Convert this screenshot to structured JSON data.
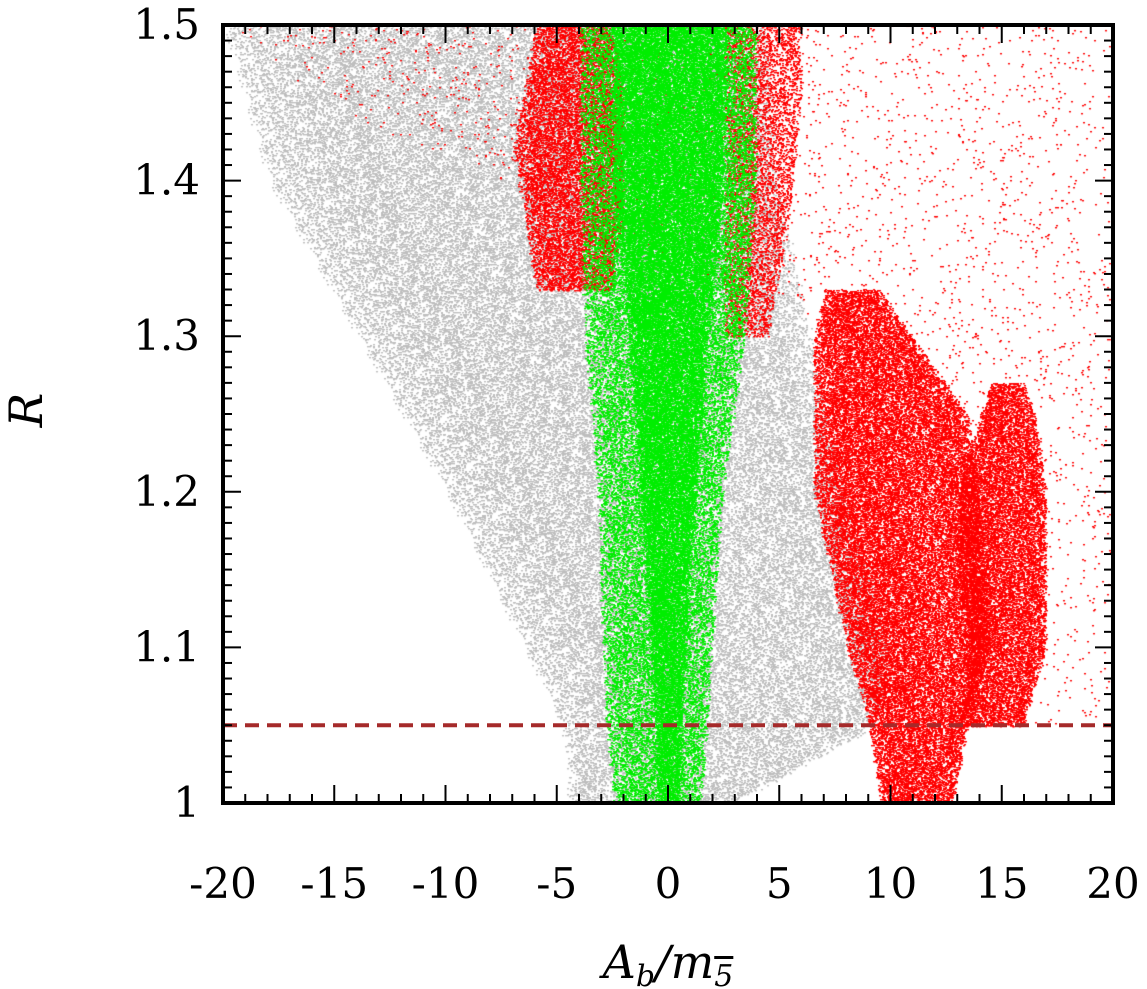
{
  "chart_data": {
    "type": "scatter",
    "title": "",
    "xlabel": "A_b/m_5bar",
    "ylabel": "R",
    "xlim": [
      -20,
      20
    ],
    "ylim": [
      1.0,
      1.5
    ],
    "grid": false,
    "x_ticks": [
      -20,
      -15,
      -10,
      -5,
      0,
      5,
      10,
      15,
      20
    ],
    "x_tick_labels": [
      "-20",
      "-15",
      "-10",
      "-5",
      "0",
      "5",
      "10",
      "15",
      "20"
    ],
    "y_ticks": [
      1.0,
      1.1,
      1.2,
      1.3,
      1.4,
      1.5
    ],
    "y_tick_labels": [
      "1",
      "1.1",
      "1.2",
      "1.3",
      "1.4",
      "1.5"
    ],
    "reference_lines": [
      {
        "orientation": "horizontal",
        "y": 1.05,
        "style": "dashed",
        "color": "#a52a2a"
      }
    ],
    "series": [
      {
        "color": "#bebebe",
        "regions": [
          {
            "y": [
              1.0,
              1.05,
              1.1,
              1.2,
              1.3,
              1.4,
              1.5
            ],
            "xmin": [
              -4.5,
              -4.8,
              -6.5,
              -10.0,
              -14.0,
              -18.0,
              -20.0
            ],
            "xmax": [
              3.0,
              9.5,
              10.0,
              8.0,
              6.5,
              5.0,
              4.5
            ],
            "density": 0.45
          }
        ]
      },
      {
        "color": "#ff0000",
        "regions": [
          {
            "y": [
              1.0,
              1.05,
              1.1,
              1.2,
              1.25,
              1.3,
              1.33
            ],
            "xmin": [
              9.5,
              9.0,
              8.0,
              6.5,
              6.5,
              6.5,
              7.0
            ],
            "xmax": [
              12.8,
              13.5,
              14.5,
              14.0,
              13.5,
              11.0,
              9.5
            ],
            "density": 1.0
          },
          {
            "y": [
              1.05,
              1.1,
              1.15,
              1.2,
              1.25,
              1.27
            ],
            "xmin": [
              13.0,
              13.5,
              13.0,
              13.0,
              14.0,
              14.5
            ],
            "xmax": [
              16.0,
              17.0,
              17.0,
              17.0,
              16.5,
              16.0
            ],
            "density": 1.0
          },
          {
            "y": [
              1.33,
              1.38,
              1.42,
              1.46,
              1.5
            ],
            "xmin": [
              -6.0,
              -6.5,
              -7.0,
              -6.5,
              -6.0
            ],
            "xmax": [
              -2.5,
              -2.0,
              -2.0,
              -2.0,
              -2.5
            ],
            "density": 0.8
          },
          {
            "y": [
              1.3,
              1.38,
              1.45,
              1.5
            ],
            "xmin": [
              2.5,
              2.5,
              2.5,
              2.5
            ],
            "xmax": [
              4.5,
              5.5,
              6.0,
              6.0
            ],
            "density": 0.45
          },
          {
            "y": [
              1.05,
              1.15,
              1.3,
              1.45,
              1.5
            ],
            "xmin": [
              14.0,
              15.0,
              8.0,
              -16.0,
              -20.0
            ],
            "xmax": [
              20.0,
              20.0,
              20.0,
              20.0,
              20.0
            ],
            "density": 0.02
          }
        ]
      },
      {
        "color": "#00ee00",
        "regions": [
          {
            "y": [
              1.0,
              1.05,
              1.1,
              1.2,
              1.3,
              1.4,
              1.5
            ],
            "xmin": [
              -2.5,
              -2.8,
              -3.0,
              -3.2,
              -3.8,
              -4.0,
              -4.0
            ],
            "xmax": [
              1.5,
              1.8,
              2.0,
              2.5,
              3.5,
              4.0,
              4.0
            ],
            "density": 0.6
          },
          {
            "y": [
              1.0,
              1.05,
              1.15,
              1.3,
              1.4,
              1.5
            ],
            "xmin": [
              -0.5,
              -0.6,
              -1.0,
              -1.8,
              -2.5,
              -2.5
            ],
            "xmax": [
              0.5,
              0.6,
              1.0,
              1.8,
              2.5,
              2.7
            ],
            "density": 1.0
          }
        ]
      }
    ]
  }
}
